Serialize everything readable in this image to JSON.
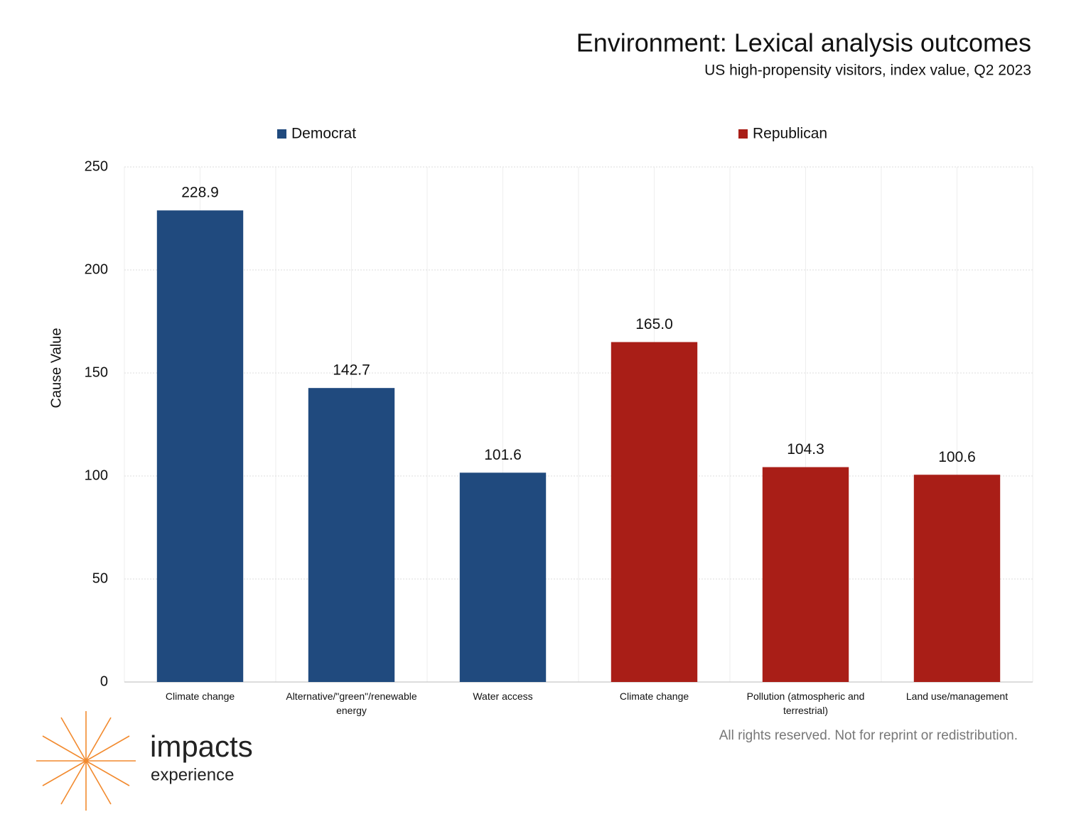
{
  "chart_data": {
    "type": "bar",
    "title": "Environment: Lexical analysis outcomes",
    "subtitle": "US high-propensity visitors, index value, Q2 2023",
    "y_label": "Cause Value",
    "categories": [
      "Climate change",
      "Alternative/\"green\"/renewable energy",
      "Water access",
      "Climate change",
      "Pollution (atmospheric and terrestrial)",
      "Land use/management"
    ],
    "series": [
      {
        "name": "Democrat",
        "color": "#204a7e",
        "values": [
          228.9,
          142.7,
          101.6,
          null,
          null,
          null
        ],
        "value_labels": [
          "228.9",
          "142.7",
          "101.6",
          null,
          null,
          null
        ]
      },
      {
        "name": "Republican",
        "color": "#a91e17",
        "values": [
          null,
          null,
          null,
          165.0,
          104.3,
          100.6
        ],
        "value_labels": [
          null,
          null,
          null,
          "165.0",
          "104.3",
          "100.6"
        ]
      }
    ],
    "ylim": [
      0,
      250
    ],
    "yticks": [
      0,
      50,
      100,
      150,
      200,
      250
    ],
    "grid": true
  },
  "footer_note": "All rights reserved. Not for reprint or redistribution.",
  "logo": {
    "name": "impacts",
    "tagline": "experience"
  }
}
